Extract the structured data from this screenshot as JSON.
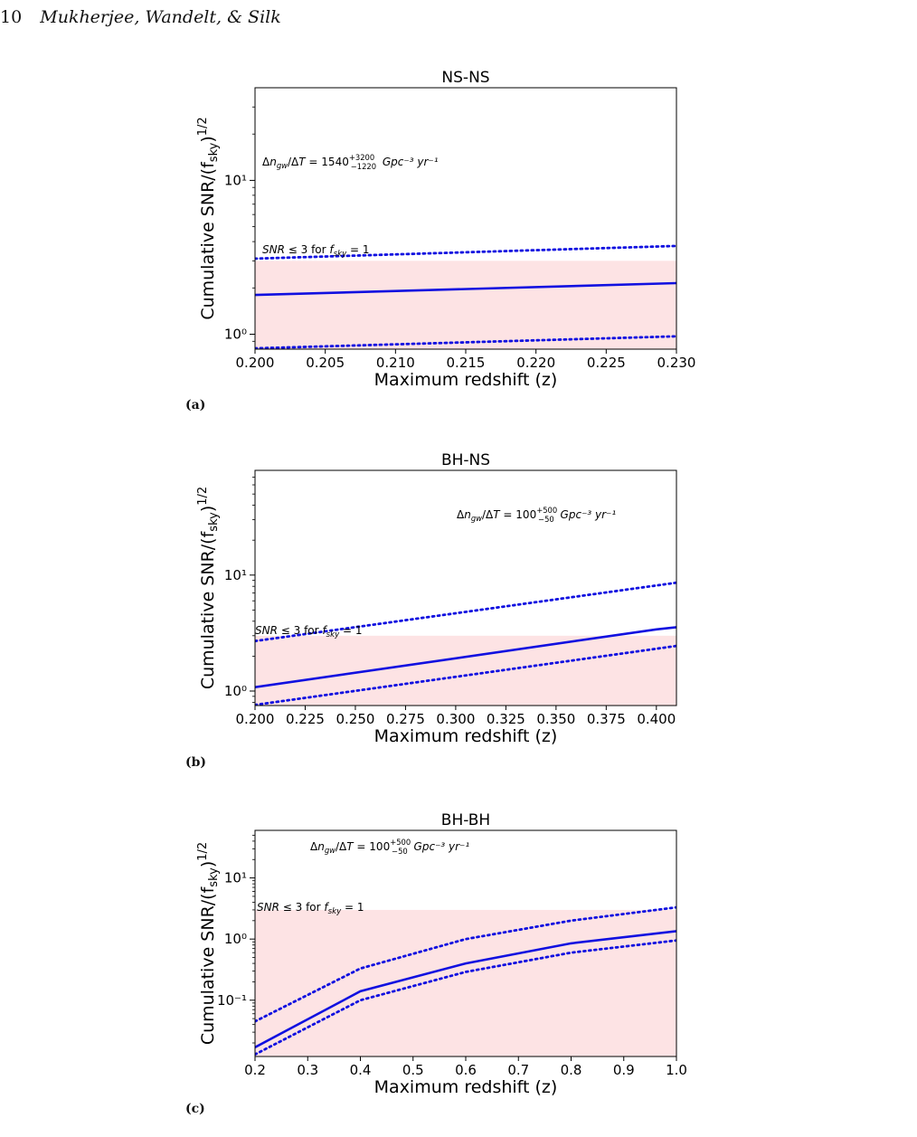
{
  "header": {
    "page_number": "10",
    "authors": "Mukherjee, Wandelt, & Silk"
  },
  "panels": [
    {
      "label": "(a)"
    },
    {
      "label": "(b)"
    },
    {
      "label": "(c)"
    }
  ],
  "chart_data": [
    {
      "type": "line",
      "title": "NS-NS",
      "xlabel": "Maximum redshift (z)",
      "ylabel": "Cumulative SNR/(f_sky)^1/2",
      "yscale": "log",
      "xlim": [
        0.2,
        0.23
      ],
      "ylim": [
        0.8,
        40
      ],
      "xticks": [
        0.2,
        0.205,
        0.21,
        0.215,
        0.22,
        0.225,
        0.23
      ],
      "xticklabels": [
        "0.200",
        "0.205",
        "0.210",
        "0.215",
        "0.220",
        "0.225",
        "0.230"
      ],
      "yticks": [
        1,
        10
      ],
      "yticklabels": [
        "10⁰",
        "10¹"
      ],
      "shaded_region": {
        "y_max": 3,
        "label": "SNR ≤ 3 for f_sky = 1",
        "color": "#fde3e4"
      },
      "rate_annotation": "Δn_gw/ΔT = 1540 (+3200 / −1220) Gpc⁻³ yr⁻¹",
      "series": [
        {
          "style": "solid",
          "x": [
            0.2,
            0.23
          ],
          "y": [
            1.8,
            2.15
          ]
        },
        {
          "style": "dotted",
          "x": [
            0.2,
            0.23
          ],
          "y": [
            3.1,
            3.75
          ]
        },
        {
          "style": "dotted",
          "x": [
            0.2,
            0.23
          ],
          "y": [
            0.81,
            0.97
          ]
        }
      ]
    },
    {
      "type": "line",
      "title": "BH-NS",
      "xlabel": "Maximum redshift (z)",
      "ylabel": "Cumulative SNR/(f_sky)^1/2",
      "yscale": "log",
      "xlim": [
        0.2,
        0.41
      ],
      "ylim": [
        0.75,
        80
      ],
      "xticks": [
        0.2,
        0.225,
        0.25,
        0.275,
        0.3,
        0.325,
        0.35,
        0.375,
        0.4
      ],
      "xticklabels": [
        "0.200",
        "0.225",
        "0.250",
        "0.275",
        "0.300",
        "0.325",
        "0.350",
        "0.375",
        "0.400"
      ],
      "yticks": [
        1,
        10
      ],
      "yticklabels": [
        "10⁰",
        "10¹"
      ],
      "shaded_region": {
        "y_max": 3,
        "label": "SNR ≤ 3 for f_sky = 1",
        "color": "#fde3e4"
      },
      "rate_annotation": "Δn_gw/ΔT = 100 (+500 / −50) Gpc⁻³ yr⁻¹",
      "series": [
        {
          "style": "solid",
          "x": [
            0.2,
            0.4,
            0.41
          ],
          "y": [
            1.08,
            3.4,
            3.55
          ]
        },
        {
          "style": "dotted",
          "x": [
            0.2,
            0.41
          ],
          "y": [
            2.7,
            8.6
          ]
        },
        {
          "style": "dotted",
          "x": [
            0.2,
            0.41
          ],
          "y": [
            0.76,
            2.45
          ]
        }
      ]
    },
    {
      "type": "line",
      "title": "BH-BH",
      "xlabel": "Maximum redshift (z)",
      "ylabel": "Cumulative SNR/(f_sky)^1/2",
      "yscale": "log",
      "xlim": [
        0.2,
        1.0
      ],
      "ylim": [
        0.012,
        60
      ],
      "xticks": [
        0.2,
        0.3,
        0.4,
        0.5,
        0.6,
        0.7,
        0.8,
        0.9,
        1.0
      ],
      "xticklabels": [
        "0.2",
        "0.3",
        "0.4",
        "0.5",
        "0.6",
        "0.7",
        "0.8",
        "0.9",
        "1.0"
      ],
      "yticks": [
        0.1,
        1,
        10
      ],
      "yticklabels": [
        "10⁻¹",
        "10⁰",
        "10¹"
      ],
      "shaded_region": {
        "y_max": 3,
        "label": "SNR ≤ 3 for f_sky = 1",
        "color": "#fde3e4"
      },
      "rate_annotation": "Δn_gw/ΔT = 100 (+500 / −50) Gpc⁻³ yr⁻¹",
      "series": [
        {
          "style": "solid",
          "x": [
            0.2,
            0.4,
            0.6,
            0.8,
            1.0
          ],
          "y": [
            0.017,
            0.14,
            0.4,
            0.85,
            1.35
          ]
        },
        {
          "style": "dotted",
          "x": [
            0.2,
            0.4,
            0.6,
            0.8,
            1.0
          ],
          "y": [
            0.045,
            0.33,
            1.0,
            2.0,
            3.3
          ]
        },
        {
          "style": "dotted",
          "x": [
            0.2,
            0.4,
            0.6,
            0.8,
            1.0
          ],
          "y": [
            0.013,
            0.1,
            0.29,
            0.6,
            0.95
          ]
        }
      ]
    }
  ]
}
